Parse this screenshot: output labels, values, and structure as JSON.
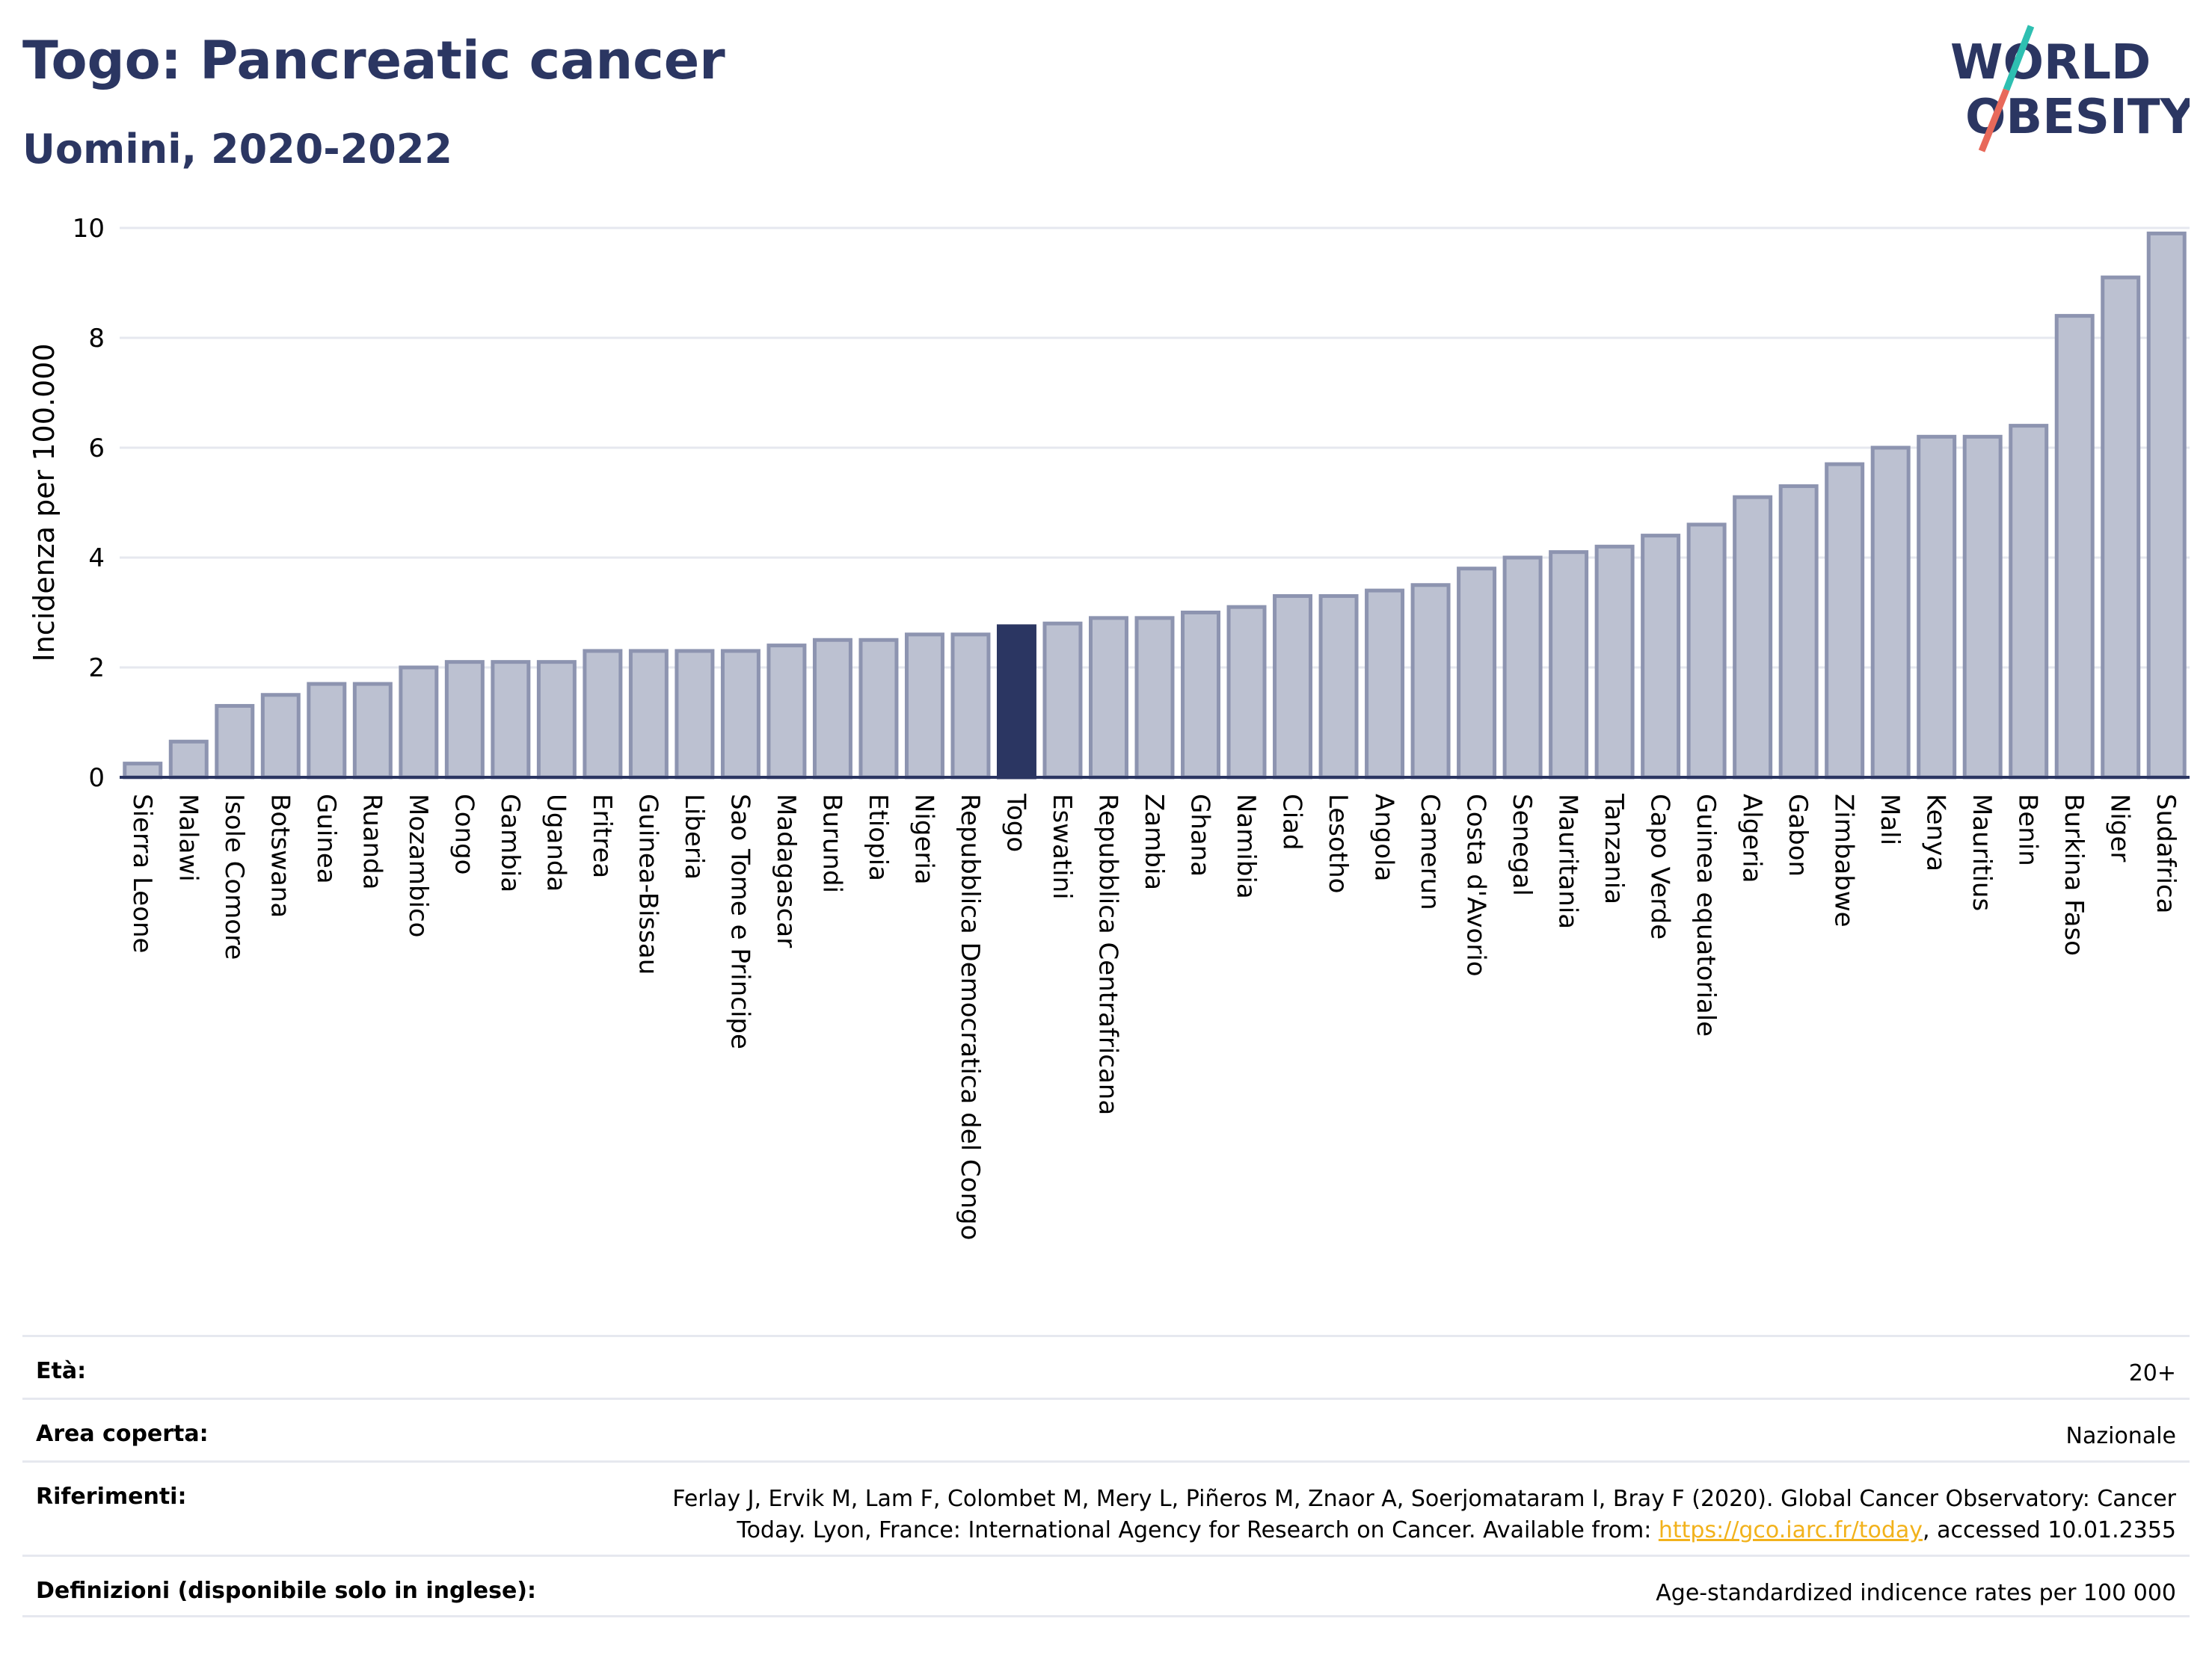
{
  "header": {
    "title": "Togo: Pancreatic cancer",
    "subtitle": "Uomini, 2020-2022"
  },
  "logo": {
    "line1": "WORLD",
    "line2": "OBESITY",
    "colors": {
      "text": "#2b3662",
      "slash_top": "#2ebfb1",
      "slash_bottom": "#e8695a"
    }
  },
  "chart_data": {
    "type": "bar",
    "ylabel": "Incidenza per 100.000",
    "ylim": [
      0,
      10
    ],
    "yticks": [
      0,
      2,
      4,
      6,
      8,
      10
    ],
    "grid": true,
    "highlight": "Togo",
    "colors": {
      "bar": "#bcc1d1",
      "bar_edge": "#8d94b0",
      "highlight": "#2b3662",
      "grid": "#e6e8ef",
      "axis": "#2b3662"
    },
    "categories": [
      "Sierra Leone",
      "Malawi",
      "Isole Comore",
      "Botswana",
      "Guinea",
      "Ruanda",
      "Mozambico",
      "Congo",
      "Gambia",
      "Uganda",
      "Eritrea",
      "Guinea-Bissau",
      "Liberia",
      "Sao Tome e Principe",
      "Madagascar",
      "Burundi",
      "Etiopia",
      "Nigeria",
      "Repubblica Democratica del Congo",
      "Togo",
      "Eswatini",
      "Repubblica Centrafricana",
      "Zambia",
      "Ghana",
      "Namibia",
      "Ciad",
      "Lesotho",
      "Angola",
      "Camerun",
      "Costa d'Avorio",
      "Senegal",
      "Mauritania",
      "Tanzania",
      "Capo Verde",
      "Guinea equatoriale",
      "Algeria",
      "Gabon",
      "Zimbabwe",
      "Mali",
      "Kenya",
      "Mauritius",
      "Benin",
      "Burkina Faso",
      "Niger",
      "Sudafrica"
    ],
    "values": [
      0.25,
      0.65,
      1.3,
      1.5,
      1.7,
      1.7,
      2.0,
      2.1,
      2.1,
      2.1,
      2.3,
      2.3,
      2.3,
      2.3,
      2.4,
      2.5,
      2.5,
      2.6,
      2.6,
      2.75,
      2.8,
      2.9,
      2.9,
      3.0,
      3.1,
      3.3,
      3.3,
      3.4,
      3.5,
      3.8,
      4.0,
      4.1,
      4.2,
      4.4,
      4.6,
      5.1,
      5.3,
      5.7,
      6.0,
      6.2,
      6.2,
      6.4,
      8.4,
      9.1,
      9.9
    ]
  },
  "meta": {
    "rows": [
      {
        "label": "Età:",
        "value": "20+"
      },
      {
        "label": "Area coperta:",
        "value": "Nazionale"
      },
      {
        "label": "Riferimenti:",
        "value_before": "Ferlay J, Ervik M, Lam F, Colombet M, Mery L, Piñeros M, Znaor A, Soerjomataram I, Bray F (2020). Global Cancer Observatory: Cancer Today. Lyon, France: International Agency for Research on Cancer. Available from: ",
        "link": "https://gco.iarc.fr/today",
        "value_after": ", accessed 10.01.2355"
      },
      {
        "label": "Definizioni (disponibile solo in inglese):",
        "value": "Age-standardized indicence rates per 100 000"
      }
    ]
  }
}
